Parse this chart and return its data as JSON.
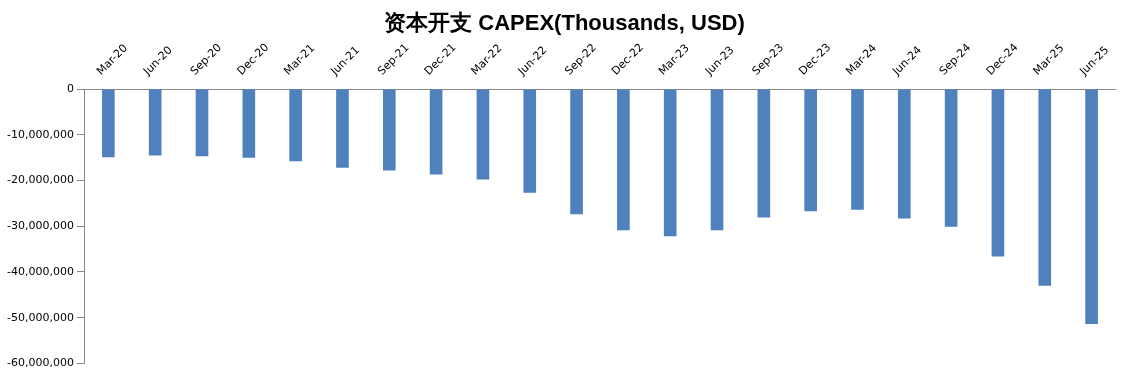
{
  "chart_data": {
    "type": "bar",
    "title": "资本开支 CAPEX(Thousands, USD)",
    "categories": [
      "Mar-20",
      "Jun-20",
      "Sep-20",
      "Dec-20",
      "Mar-21",
      "Jun-21",
      "Sep-21",
      "Dec-21",
      "Mar-22",
      "Jun-22",
      "Sep-22",
      "Dec-22",
      "Mar-23",
      "Jun-23",
      "Sep-23",
      "Dec-23",
      "Mar-24",
      "Jun-24",
      "Sep-24",
      "Dec-24",
      "Mar-25",
      "Jun-25"
    ],
    "values": [
      -14900000,
      -14500000,
      -14700000,
      -15000000,
      -15800000,
      -17200000,
      -17800000,
      -18700000,
      -19800000,
      -22700000,
      -27400000,
      -30900000,
      -32200000,
      -30900000,
      -28100000,
      -26700000,
      -26400000,
      -28300000,
      -30100000,
      -36600000,
      -43000000,
      -51400000
    ],
    "color": "#4f81bd",
    "ylim": [
      -60000000,
      0
    ],
    "yticks": [
      {
        "value": -60000000,
        "label": "-60,000,000"
      },
      {
        "value": -50000000,
        "label": "-50,000,000"
      },
      {
        "value": -40000000,
        "label": "-40,000,000"
      },
      {
        "value": -30000000,
        "label": "-30,000,000"
      },
      {
        "value": -20000000,
        "label": "-20,000,000"
      },
      {
        "value": -10000000,
        "label": "-10,000,000"
      },
      0
    ],
    "grid": false,
    "legend": false
  }
}
